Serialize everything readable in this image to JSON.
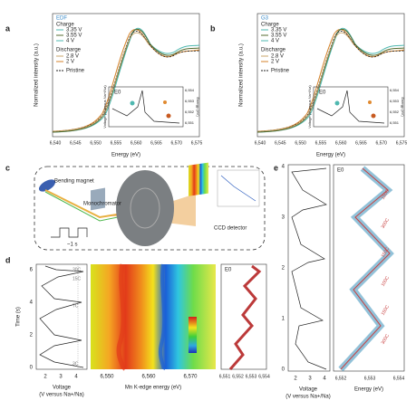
{
  "panels": {
    "a": {
      "label": "a",
      "legend": [
        "EDF",
        "Charge",
        "3.35 V",
        "3.55 V",
        "4 V",
        "Discharge",
        "2.8 V",
        "2 V",
        "Pristine"
      ],
      "ylabel": "Normalized intensity (a.u.)",
      "xlabel": "Energy (eV)",
      "xticks": [
        "6,540",
        "6,545",
        "6,550",
        "6,555",
        "6,560",
        "6,565",
        "6,570",
        "6,575"
      ],
      "inset": {
        "title": "E0",
        "ylabel": "Voltage (V versus Na+/Na)",
        "y2label": "Energy (eV)",
        "y2ticks": [
          "6,554",
          "6,553",
          "6,552",
          "6,551"
        ]
      }
    },
    "b": {
      "label": "b",
      "legend": [
        "G3",
        "Charge",
        "3.35 V",
        "3.55 V",
        "4 V",
        "Discharge",
        "2.8 V",
        "2 V",
        "Pristine"
      ],
      "ylabel": "Normalized intensity (a.u.)",
      "xlabel": "Energy (eV)",
      "xticks": [
        "6,540",
        "6,545",
        "6,550",
        "6,555",
        "6,560",
        "6,565",
        "6,570",
        "6,575"
      ],
      "inset": {
        "title": "E0",
        "ylabel": "Voltage (V versus Na+/Na)",
        "y2label": "Energy (eV)",
        "y2ticks": [
          "6,554",
          "6,553",
          "6,552",
          "6,551"
        ]
      }
    },
    "c": {
      "label": "c",
      "bending_magnet": "Bending magnet",
      "monochromator": "Monochromator",
      "pulse": "~1 s",
      "detector": "CCD detector"
    },
    "d": {
      "label": "d",
      "ylabel": "Time (s)",
      "yticks": [
        "0",
        "2",
        "4",
        "6"
      ],
      "rates": [
        "30C",
        "15C",
        "7C",
        "3C"
      ],
      "voltage_ticks": [
        "2",
        "3",
        "4"
      ],
      "voltage_label": "Voltage",
      "voltage_unit": "(V versus Na+/Na)",
      "map_ticks": [
        "6,550",
        "6,560",
        "6,570"
      ],
      "map_label": "Mn K-edge energy (eV)",
      "colorbar": [
        "0.02",
        "-0.03"
      ],
      "e0_title": "E0",
      "e0_ticks": [
        "6,551",
        "6,552",
        "6,553",
        "6,554"
      ]
    },
    "e": {
      "label": "e",
      "yticks": [
        "0",
        "1",
        "2",
        "3",
        "4"
      ],
      "voltage_ticks": [
        "2",
        "3",
        "4"
      ],
      "voltage_label": "Voltage",
      "voltage_unit": "(V versus Na+/Na)",
      "e0_title": "E0",
      "rates": [
        "300C",
        "150C",
        "100C",
        "150C",
        "300C",
        "150C"
      ],
      "e0_ticks": [
        "6,552",
        "6,553",
        "6,554"
      ],
      "e0_label": "Energy (eV)"
    }
  }
}
